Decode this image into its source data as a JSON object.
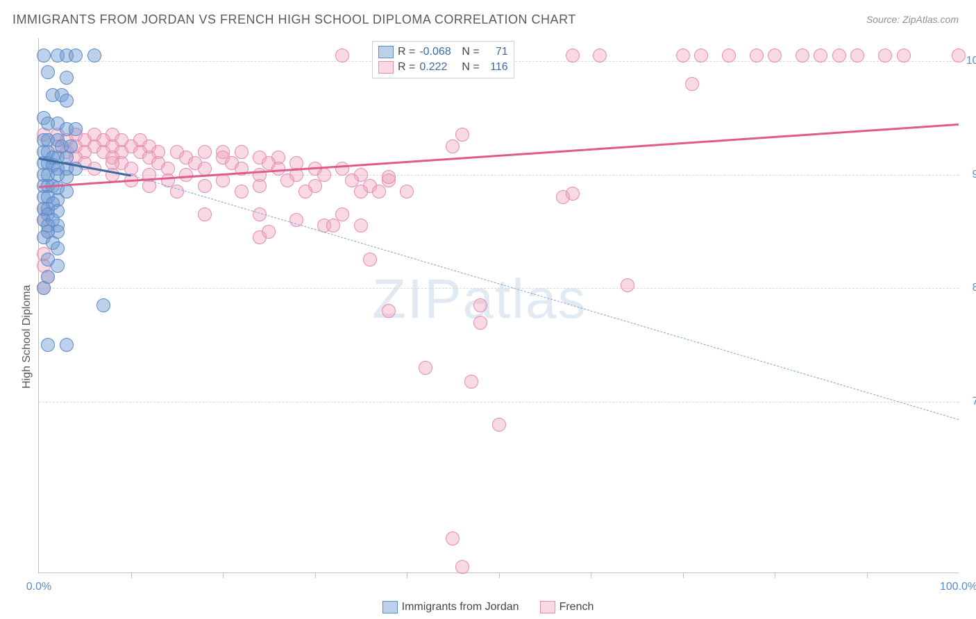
{
  "chart": {
    "type": "scatter",
    "title": "IMMIGRANTS FROM JORDAN VS FRENCH HIGH SCHOOL DIPLOMA CORRELATION CHART",
    "source": "Source: ZipAtlas.com",
    "y_axis_label": "High School Diploma",
    "title_fontsize": 18,
    "title_color": "#5a5a5a",
    "source_fontsize": 14,
    "source_color": "#909090",
    "background_color": "#ffffff",
    "axis_color": "#bfbfbf",
    "grid_color": "#d8d8d8",
    "tick_label_color": "#5a8ac7",
    "tick_fontsize": 16,
    "xlim": [
      0,
      100
    ],
    "ylim": [
      55,
      102
    ],
    "x_ticks_labeled": [
      {
        "v": 0,
        "label": "0.0%"
      },
      {
        "v": 100,
        "label": "100.0%"
      }
    ],
    "x_minor_ticks": [
      10,
      20,
      30,
      40,
      50,
      60,
      70,
      80,
      90
    ],
    "y_ticks": [
      {
        "v": 70,
        "label": "70.0%"
      },
      {
        "v": 80,
        "label": "80.0%"
      },
      {
        "v": 90,
        "label": "90.0%"
      },
      {
        "v": 100,
        "label": "100.0%"
      }
    ],
    "watermark": {
      "text_a": "ZIP",
      "text_b": "atlas",
      "color": "rgba(120,160,200,0.22)",
      "fontsize": 80
    },
    "series": [
      {
        "name": "Immigrants from Jordan",
        "color_fill": "rgba(108,154,210,0.45)",
        "color_stroke": "#5a8ac7",
        "marker_size": 18,
        "R": "-0.068",
        "N": "71",
        "trend": {
          "x1": 0,
          "y1": 91.5,
          "x2": 10,
          "y2": 90.0,
          "color": "#3b6aa0",
          "width": 3,
          "dash": false
        },
        "trend_ext": {
          "x1": 10,
          "y1": 90.0,
          "x2": 100,
          "y2": 68.5,
          "color": "#7ba4d6",
          "width": 1.5,
          "dash": true
        },
        "points": [
          [
            0.5,
            100.5
          ],
          [
            2,
            100.5
          ],
          [
            3,
            100.5
          ],
          [
            4,
            100.5
          ],
          [
            6,
            100.5
          ],
          [
            1,
            99
          ],
          [
            3,
            98.5
          ],
          [
            1.5,
            97
          ],
          [
            2.5,
            97
          ],
          [
            3,
            96.5
          ],
          [
            0.5,
            95
          ],
          [
            1,
            94.5
          ],
          [
            2,
            94.5
          ],
          [
            3,
            94
          ],
          [
            4,
            94
          ],
          [
            0.5,
            93
          ],
          [
            1,
            93
          ],
          [
            2,
            93
          ],
          [
            2.5,
            92.5
          ],
          [
            3.5,
            92.5
          ],
          [
            0.5,
            92
          ],
          [
            1,
            92
          ],
          [
            1.5,
            91.5
          ],
          [
            2,
            91.5
          ],
          [
            3,
            91.5
          ],
          [
            0.5,
            91
          ],
          [
            1,
            91
          ],
          [
            1.5,
            90.8
          ],
          [
            2,
            90.5
          ],
          [
            3,
            90.5
          ],
          [
            4,
            90.5
          ],
          [
            0.5,
            90
          ],
          [
            1,
            90
          ],
          [
            2,
            90
          ],
          [
            3,
            89.8
          ],
          [
            0.5,
            89
          ],
          [
            1,
            89
          ],
          [
            1.5,
            89
          ],
          [
            2,
            88.8
          ],
          [
            3,
            88.5
          ],
          [
            0.5,
            88
          ],
          [
            1,
            88
          ],
          [
            2,
            87.8
          ],
          [
            1.5,
            87.5
          ],
          [
            0.5,
            87
          ],
          [
            1,
            87
          ],
          [
            2,
            86.8
          ],
          [
            1,
            86.5
          ],
          [
            0.5,
            86
          ],
          [
            1.5,
            86
          ],
          [
            2,
            85.5
          ],
          [
            1,
            85.5
          ],
          [
            2,
            85
          ],
          [
            1,
            85
          ],
          [
            0.5,
            84.5
          ],
          [
            1.5,
            84
          ],
          [
            2,
            83.5
          ],
          [
            1,
            82.5
          ],
          [
            2,
            82
          ],
          [
            1,
            81
          ],
          [
            0.5,
            80
          ],
          [
            7,
            78.5
          ],
          [
            1,
            75
          ],
          [
            3,
            75
          ]
        ]
      },
      {
        "name": "French",
        "color_fill": "rgba(240,160,185,0.40)",
        "color_stroke": "#e78ab0",
        "marker_size": 18,
        "R": "0.222",
        "N": "116",
        "trend": {
          "x1": 0,
          "y1": 89.0,
          "x2": 100,
          "y2": 94.5,
          "color": "#e05a8c",
          "width": 3,
          "dash": false
        },
        "points": [
          [
            33,
            100.5
          ],
          [
            47,
            100.5
          ],
          [
            58,
            100.5
          ],
          [
            61,
            100.5
          ],
          [
            70,
            100.5
          ],
          [
            72,
            100.5
          ],
          [
            75,
            100.5
          ],
          [
            78,
            100.5
          ],
          [
            80,
            100.5
          ],
          [
            83,
            100.5
          ],
          [
            85,
            100.5
          ],
          [
            87,
            100.5
          ],
          [
            89,
            100.5
          ],
          [
            92,
            100.5
          ],
          [
            94,
            100.5
          ],
          [
            100,
            100.5
          ],
          [
            71,
            98
          ],
          [
            0.5,
            93.5
          ],
          [
            2,
            93.5
          ],
          [
            4,
            93.5
          ],
          [
            6,
            93.5
          ],
          [
            8,
            93.5
          ],
          [
            3,
            93
          ],
          [
            5,
            93
          ],
          [
            7,
            93
          ],
          [
            9,
            93
          ],
          [
            11,
            93
          ],
          [
            46,
            93.5
          ],
          [
            2,
            92.5
          ],
          [
            4,
            92.5
          ],
          [
            6,
            92.5
          ],
          [
            8,
            92.5
          ],
          [
            10,
            92.5
          ],
          [
            12,
            92.5
          ],
          [
            45,
            92.5
          ],
          [
            3,
            92
          ],
          [
            5,
            92
          ],
          [
            7,
            92
          ],
          [
            9,
            92
          ],
          [
            11,
            92
          ],
          [
            13,
            92
          ],
          [
            15,
            92
          ],
          [
            18,
            92
          ],
          [
            20,
            92
          ],
          [
            22,
            92
          ],
          [
            4,
            91.5
          ],
          [
            8,
            91.5
          ],
          [
            12,
            91.5
          ],
          [
            16,
            91.5
          ],
          [
            20,
            91.5
          ],
          [
            24,
            91.5
          ],
          [
            26,
            91.5
          ],
          [
            5,
            91
          ],
          [
            9,
            91
          ],
          [
            13,
            91
          ],
          [
            17,
            91
          ],
          [
            21,
            91
          ],
          [
            25,
            91
          ],
          [
            28,
            91
          ],
          [
            8,
            91
          ],
          [
            6,
            90.5
          ],
          [
            10,
            90.5
          ],
          [
            14,
            90.5
          ],
          [
            18,
            90.5
          ],
          [
            22,
            90.5
          ],
          [
            26,
            90.5
          ],
          [
            30,
            90.5
          ],
          [
            33,
            90.5
          ],
          [
            8,
            90
          ],
          [
            12,
            90
          ],
          [
            16,
            90
          ],
          [
            24,
            90
          ],
          [
            28,
            90
          ],
          [
            31,
            90
          ],
          [
            35,
            90
          ],
          [
            10,
            89.5
          ],
          [
            14,
            89.5
          ],
          [
            20,
            89.5
          ],
          [
            27,
            89.5
          ],
          [
            34,
            89.5
          ],
          [
            38,
            89.5
          ],
          [
            38,
            89.8
          ],
          [
            12,
            89
          ],
          [
            18,
            89
          ],
          [
            24,
            89
          ],
          [
            30,
            89
          ],
          [
            36,
            89
          ],
          [
            15,
            88.5
          ],
          [
            22,
            88.5
          ],
          [
            29,
            88.5
          ],
          [
            35,
            88.5
          ],
          [
            37,
            88.5
          ],
          [
            40,
            88.5
          ],
          [
            57,
            88
          ],
          [
            0.5,
            87
          ],
          [
            0.5,
            86
          ],
          [
            1,
            85
          ],
          [
            18,
            86.5
          ],
          [
            24,
            86.5
          ],
          [
            28,
            86
          ],
          [
            31,
            85.5
          ],
          [
            33,
            86.5
          ],
          [
            25,
            85
          ],
          [
            24,
            84.5
          ],
          [
            32,
            85.5
          ],
          [
            35,
            85.5
          ],
          [
            0.5,
            83
          ],
          [
            0.5,
            82
          ],
          [
            1,
            81
          ],
          [
            0.5,
            80
          ],
          [
            36,
            82.5
          ],
          [
            64,
            80.3
          ],
          [
            58,
            88.3
          ],
          [
            38,
            78
          ],
          [
            48,
            78.5
          ],
          [
            48,
            77
          ],
          [
            42,
            73
          ],
          [
            47,
            71.8
          ],
          [
            50,
            68
          ],
          [
            45,
            58
          ],
          [
            46,
            55.5
          ]
        ]
      }
    ],
    "stats_legend": {
      "text_color_label": "#444444",
      "text_color_value": "#3b6aa0"
    },
    "bottom_legend": {
      "items": [
        "Immigrants from Jordan",
        "French"
      ]
    }
  }
}
